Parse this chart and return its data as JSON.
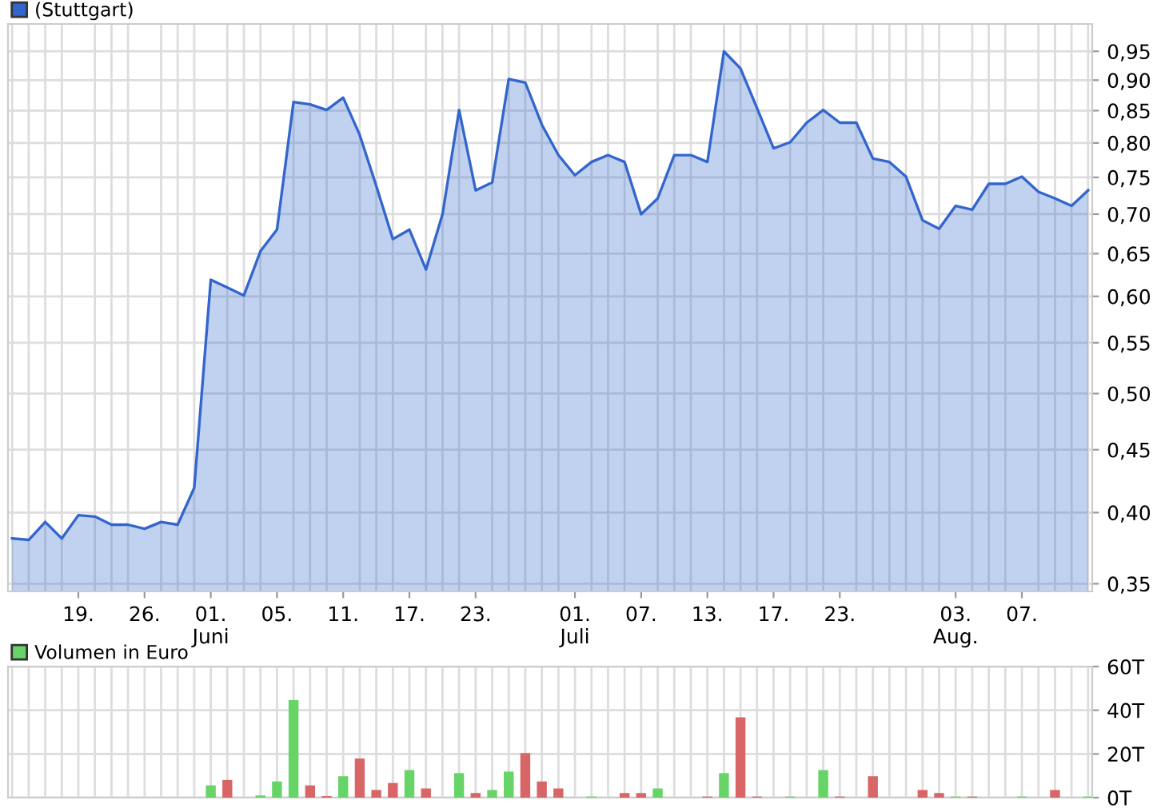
{
  "chart_data": [
    {
      "type": "area",
      "log": "y",
      "grid": true,
      "legend": "top left",
      "categories": [
        null,
        null,
        null,
        null,
        "19.",
        null,
        null,
        null,
        "26.",
        null,
        null,
        null,
        "01.\nJuni",
        null,
        null,
        null,
        "05.",
        null,
        null,
        null,
        "11.",
        null,
        null,
        null,
        "17.",
        null,
        null,
        null,
        "23.",
        null,
        null,
        null,
        null,
        null,
        "01.\nJuli",
        null,
        null,
        null,
        "07.",
        null,
        null,
        null,
        "13.",
        null,
        null,
        null,
        "17.",
        null,
        null,
        null,
        "23.",
        null,
        null,
        null,
        null,
        null,
        null,
        "03.\nAug.",
        null,
        null,
        null,
        "07.",
        null,
        null,
        null,
        null
      ],
      "series": [
        {
          "name": "(Stuttgart)",
          "color": "#3366cc",
          "values": [
            0.381,
            0.38,
            0.393,
            0.381,
            0.398,
            0.397,
            0.391,
            0.391,
            0.388,
            0.393,
            0.391,
            0.419,
            0.619,
            0.61,
            0.601,
            0.653,
            0.68,
            0.864,
            0.86,
            0.851,
            0.871,
            0.812,
            0.738,
            0.668,
            0.68,
            0.631,
            0.7,
            0.851,
            0.732,
            0.743,
            0.902,
            0.896,
            0.828,
            0.782,
            0.753,
            0.772,
            0.782,
            0.772,
            0.7,
            0.721,
            0.782,
            0.782,
            0.772,
            0.95,
            0.92,
            0.854,
            0.792,
            0.801,
            0.831,
            0.851,
            0.831,
            0.831,
            0.777,
            0.772,
            0.751,
            0.692,
            0.681,
            0.711,
            0.706,
            0.741,
            0.741,
            0.751,
            0.73,
            0.721,
            0.711,
            0.732
          ]
        }
      ],
      "ylim": [
        0.345,
        1.0
      ],
      "yticks": [
        {
          "value": 0.35,
          "label": "0,35"
        },
        {
          "value": 0.4,
          "label": "0,40"
        },
        {
          "value": 0.45,
          "label": "0,45"
        },
        {
          "value": 0.5,
          "label": "0,50"
        },
        {
          "value": 0.55,
          "label": "0,55"
        },
        {
          "value": 0.6,
          "label": "0,60"
        },
        {
          "value": 0.65,
          "label": "0,65"
        },
        {
          "value": 0.7,
          "label": "0,70"
        },
        {
          "value": 0.75,
          "label": "0,75"
        },
        {
          "value": 0.8,
          "label": "0,80"
        },
        {
          "value": 0.85,
          "label": "0,85"
        },
        {
          "value": 0.9,
          "label": "0,90"
        },
        {
          "value": 0.95,
          "label": "0,95"
        }
      ]
    },
    {
      "type": "bar",
      "grid": true,
      "legend": "top left",
      "tick_labels": "y",
      "categories": [
        null,
        null,
        null,
        null,
        null,
        null,
        null,
        null,
        null,
        null,
        null,
        null,
        null,
        null,
        null,
        null,
        null,
        null,
        null,
        null,
        null,
        null,
        null,
        null,
        null,
        null,
        null,
        null,
        null,
        null,
        null,
        null,
        null,
        null,
        null,
        null,
        null,
        null,
        null,
        null,
        null,
        null,
        null,
        null,
        null,
        null,
        null,
        null,
        null,
        null,
        null,
        null,
        null,
        null,
        null,
        null,
        null,
        null,
        null,
        null,
        null,
        null,
        null,
        null,
        null,
        null
      ],
      "series": [
        {
          "name": "Volumen in Euro",
          "color": "#66d466",
          "values": [
            null,
            null,
            null,
            null,
            null,
            null,
            null,
            null,
            null,
            null,
            null,
            null,
            5.6,
            8.1,
            null,
            1.0,
            7.4,
            44.6,
            5.6,
            0.7,
            9.8,
            17.9,
            3.5,
            6.7,
            12.6,
            4.2,
            null,
            11.2,
            2.1,
            3.5,
            11.9,
            20.4,
            7.4,
            4.2,
            null,
            0.5,
            null,
            2.1,
            2.1,
            4.2,
            null,
            null,
            0.5,
            11.2,
            36.8,
            0.5,
            null,
            0.5,
            null,
            12.6,
            0.5,
            null,
            9.8,
            null,
            null,
            3.5,
            2.1,
            0.5,
            0.5,
            null,
            null,
            0.5,
            null,
            3.5,
            null,
            0.5
          ],
          "colors": [
            "#66d466",
            "#66d466",
            "#66d466",
            "#66d466",
            "#66d466",
            "#66d466",
            "#66d466",
            "#66d466",
            "#66d466",
            "#66d466",
            "#66d466",
            "#66d466",
            "#66d466",
            "#d96666",
            "#66d466",
            "#66d466",
            "#66d466",
            "#66d466",
            "#d96666",
            "#d96666",
            "#66d466",
            "#d96666",
            "#d96666",
            "#d96666",
            "#66d466",
            "#d96666",
            "#66d466",
            "#66d466",
            "#d96666",
            "#66d466",
            "#66d466",
            "#d96666",
            "#d96666",
            "#d96666",
            "#66d466",
            "#66d466",
            "#66d466",
            "#d96666",
            "#d96666",
            "#66d466",
            "#66d466",
            "#bbbbbb",
            "#d96666",
            "#66d466",
            "#d96666",
            "#d96666",
            "#66d466",
            "#66d466",
            "#66d466",
            "#66d466",
            "#d96666",
            "#bbbbbb",
            "#d96666",
            "#66d466",
            "#66d466",
            "#d96666",
            "#d96666",
            "#66d466",
            "#d96666",
            "#66d466",
            "#66d466",
            "#66d466",
            "#66d466",
            "#d96666",
            "#66d466",
            "#66d466"
          ]
        }
      ],
      "ylim": [
        0,
        60
      ],
      "yticks": [
        {
          "value": 0,
          "label": "0T"
        },
        {
          "value": 20,
          "label": "20T"
        },
        {
          "value": 40,
          "label": "40T"
        },
        {
          "value": 60,
          "label": "60T"
        }
      ]
    }
  ]
}
